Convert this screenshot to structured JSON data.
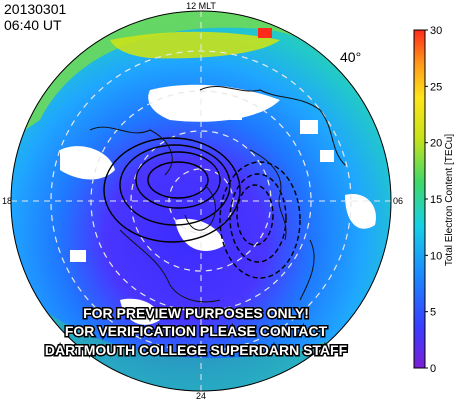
{
  "header": {
    "date": "20130301",
    "time": "06:40 UT"
  },
  "map": {
    "mlt_labels": {
      "top": "12 MLT",
      "bottom": "24",
      "left": "18",
      "right": "06"
    },
    "latitude_label": "40°",
    "watermark": [
      "FOR PREVIEW PURPOSES ONLY!",
      "FOR VERIFICATION PLEASE CONTACT",
      "DARTMOUTH COLLEGE SUPERDARN STAFF"
    ]
  },
  "colorbar": {
    "title": "Total Electron Content [TECu]",
    "ticks": [
      "0",
      "5",
      "10",
      "15",
      "20",
      "25",
      "30"
    ],
    "min": 0,
    "max": 30,
    "colors": [
      "#7a1fd6",
      "#3a3cff",
      "#1a8cff",
      "#17d0e6",
      "#3fd86a",
      "#c8e21a",
      "#ffe41a",
      "#ff9a1a",
      "#ff2a1a"
    ]
  }
}
